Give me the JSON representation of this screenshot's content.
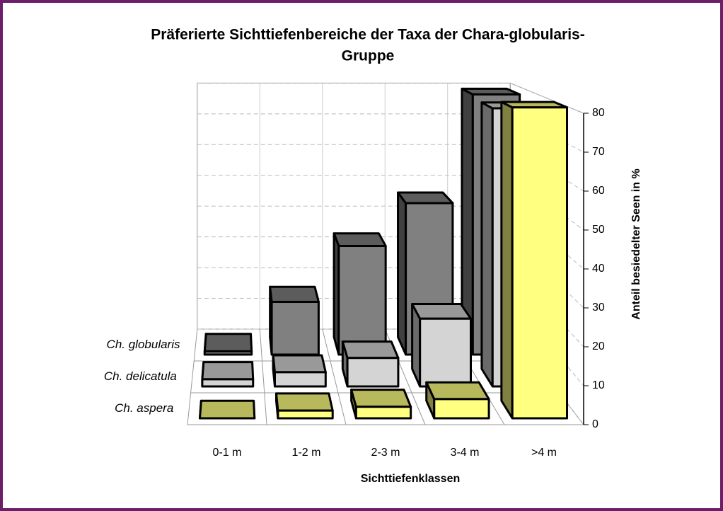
{
  "chart_data": {
    "type": "bar3d",
    "title": [
      "Präferierte Sichttiefenbereiche der Taxa der Chara-globularis-",
      "Gruppe"
    ],
    "x_label": "Sichttiefenklassen",
    "y_label": "Anteil besiedelter Seen in %",
    "categories": [
      "0-1 m",
      "1-2 m",
      "2-3 m",
      "3-4 m",
      ">4 m"
    ],
    "series": [
      {
        "name": "Ch. globularis",
        "color": "#808080",
        "values": [
          1,
          16,
          33,
          46,
          79
        ]
      },
      {
        "name": "Ch. delicatula",
        "color": "#d4d4d4",
        "values": [
          2,
          4,
          8,
          19,
          78
        ]
      },
      {
        "name": "Ch. aspera",
        "color": "#ffff80",
        "values": [
          0,
          2,
          3,
          5,
          81
        ]
      }
    ],
    "ylim": [
      0,
      80
    ],
    "yticks": [
      0,
      10,
      20,
      30,
      40,
      50,
      60,
      70,
      80
    ],
    "grid": true
  }
}
